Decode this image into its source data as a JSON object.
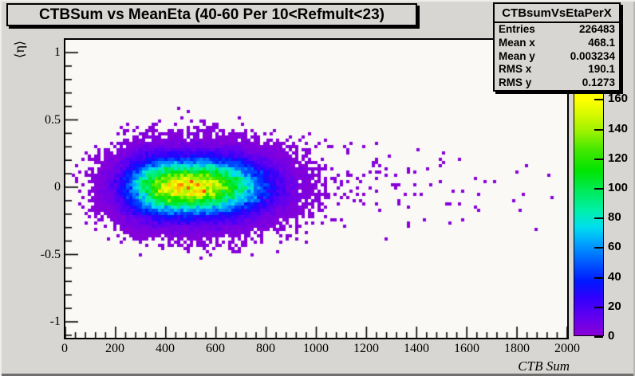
{
  "window": {
    "background": "#d8d6d2"
  },
  "title_box": {
    "text": "CTBSum vs MeanEta (40-60 Per 10<Refmult<23)"
  },
  "stats": {
    "header": "CTBsumVsEtaPerX",
    "rows": [
      {
        "label": "Entries",
        "value": "226483"
      },
      {
        "label": "Mean x",
        "value": "468.1"
      },
      {
        "label": "Mean y",
        "value": "0.003234"
      },
      {
        "label": "RMS x",
        "value": "190.1"
      },
      {
        "label": "RMS y",
        "value": "0.1273"
      }
    ]
  },
  "chart_data": {
    "type": "heatmap",
    "title": "CTBSum vs MeanEta (40-60 Per 10<Refmult<23)",
    "xlabel": "CTB Sum",
    "ylabel": "⟨η⟩",
    "xlim": [
      0,
      2000
    ],
    "ylim": [
      -1.13,
      1.1
    ],
    "zlim": [
      0,
      160
    ],
    "grid": false,
    "x_ticks": [
      0,
      200,
      400,
      600,
      800,
      1000,
      1200,
      1400,
      1600,
      1800,
      2000
    ],
    "x_minor_step": 40,
    "y_ticks": [
      -1,
      -0.5,
      0,
      0.5,
      1
    ],
    "y_minor_step": 0.1,
    "z_ticks": [
      0,
      20,
      40,
      60,
      80,
      100,
      120,
      140,
      160
    ],
    "distribution": {
      "entries": 226483,
      "mean_x": 468.1,
      "mean_y": 0.003234,
      "rms_x": 190.1,
      "rms_y": 0.1273,
      "peak_bin_count": 162,
      "shape": "dense ellipsoidal core at (≈430, 0), red-orange hotspot, long sparse right tail of single-count violet bins out to x≈1900, sparse vertical scatter to |y|≈0.6"
    },
    "palette_stops": [
      [
        0.001,
        138,
        0,
        216
      ],
      [
        0.08,
        96,
        0,
        240
      ],
      [
        0.16,
        48,
        0,
        252
      ],
      [
        0.23,
        0,
        24,
        255
      ],
      [
        0.31,
        0,
        90,
        255
      ],
      [
        0.39,
        0,
        160,
        255
      ],
      [
        0.46,
        0,
        222,
        238
      ],
      [
        0.53,
        0,
        240,
        170
      ],
      [
        0.61,
        0,
        235,
        92
      ],
      [
        0.7,
        0,
        228,
        0
      ],
      [
        0.79,
        70,
        232,
        0
      ],
      [
        0.87,
        160,
        242,
        0
      ],
      [
        0.94,
        216,
        250,
        0
      ],
      [
        1.0,
        255,
        255,
        0
      ],
      [
        1.07,
        255,
        160,
        0
      ],
      [
        1.13,
        255,
        80,
        0
      ],
      [
        1.25,
        255,
        0,
        0
      ]
    ],
    "legend_position": "right color bar 0–160"
  }
}
